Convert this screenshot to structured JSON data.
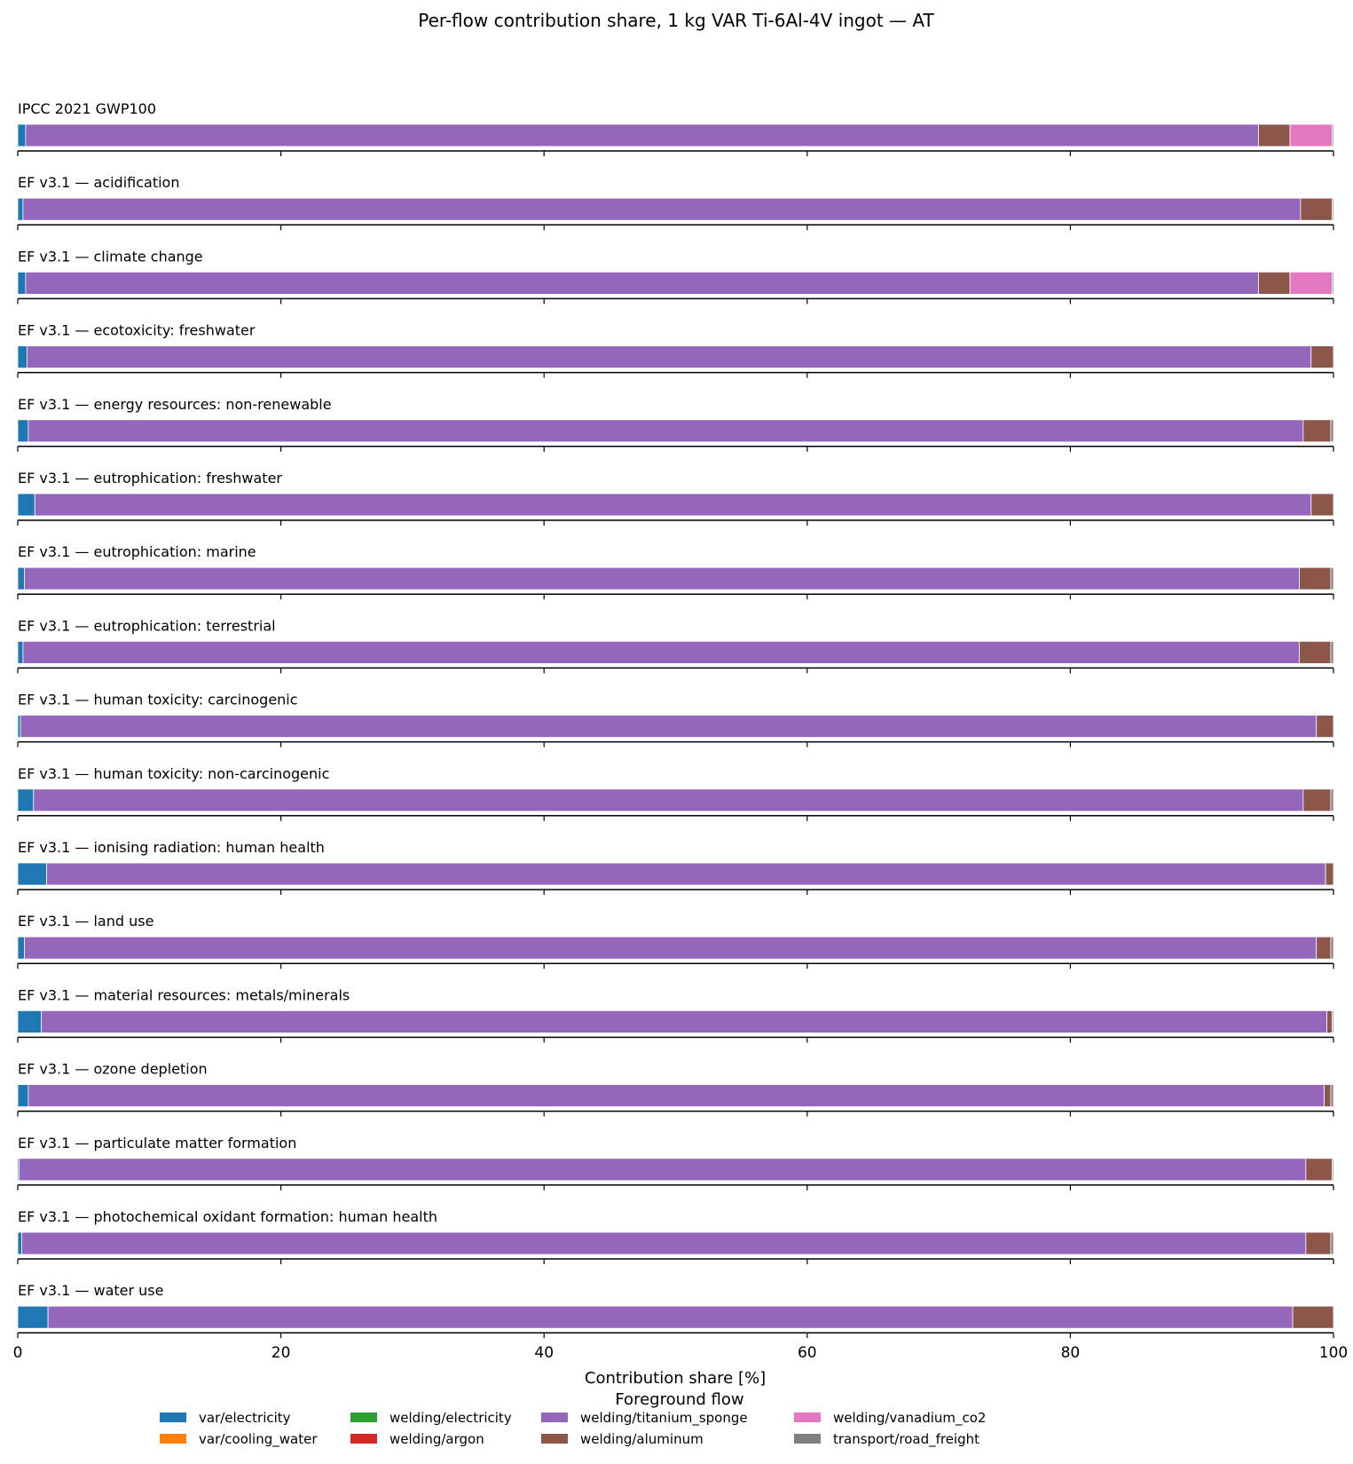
{
  "chart_data": {
    "type": "bar",
    "orientation": "horizontal-stacked-panels",
    "title": "Per-flow contribution share, 1 kg VAR Ti-6Al-4V ingot — AT",
    "xlabel": "Contribution share [%]",
    "xlim": [
      0,
      100
    ],
    "xticks": [
      "0",
      "20",
      "40",
      "60",
      "80",
      "100"
    ],
    "grid": false,
    "legend_title": "Foreground flow",
    "legend_position": "bottom-center",
    "legend_columns": 5,
    "series": [
      {
        "name": "var/electricity",
        "color": "#1f77b4"
      },
      {
        "name": "var/cooling_water",
        "color": "#ff7f0e"
      },
      {
        "name": "welding/electricity",
        "color": "#2ca02c"
      },
      {
        "name": "welding/argon",
        "color": "#d62728"
      },
      {
        "name": "welding/titanium_sponge",
        "color": "#9467bd"
      },
      {
        "name": "welding/aluminum",
        "color": "#8c564b"
      },
      {
        "name": "welding/vanadium_co2",
        "color": "#e377c2"
      },
      {
        "name": "transport/road_freight",
        "color": "#7f7f7f"
      }
    ],
    "categories": [
      "IPCC 2021 GWP100",
      "EF v3.1 — acidification",
      "EF v3.1 — climate change",
      "EF v3.1 — ecotoxicity: freshwater",
      "EF v3.1 — energy resources: non-renewable",
      "EF v3.1 — eutrophication: freshwater",
      "EF v3.1 — eutrophication: marine",
      "EF v3.1 — eutrophication: terrestrial",
      "EF v3.1 — human toxicity: carcinogenic",
      "EF v3.1 — human toxicity: non-carcinogenic",
      "EF v3.1 — ionising radiation: human health",
      "EF v3.1 — land use",
      "EF v3.1 — material resources: metals/minerals",
      "EF v3.1 — ozone depletion",
      "EF v3.1 — particulate matter formation",
      "EF v3.1 — photochemical oxidant formation: human health",
      "EF v3.1 — water use"
    ],
    "values": [
      [
        0.6,
        0.0,
        0.0,
        0.0,
        93.7,
        2.4,
        3.2,
        0.1
      ],
      [
        0.4,
        0.0,
        0.0,
        0.0,
        97.1,
        2.4,
        0.0,
        0.1
      ],
      [
        0.6,
        0.0,
        0.0,
        0.0,
        93.7,
        2.4,
        3.2,
        0.1
      ],
      [
        0.7,
        0.0,
        0.0,
        0.0,
        97.6,
        1.7,
        0.0,
        0.0
      ],
      [
        0.8,
        0.0,
        0.0,
        0.0,
        96.9,
        2.1,
        0.0,
        0.2
      ],
      [
        1.3,
        0.0,
        0.0,
        0.0,
        97.0,
        1.7,
        0.0,
        0.0
      ],
      [
        0.5,
        0.0,
        0.0,
        0.0,
        96.9,
        2.4,
        0.0,
        0.2
      ],
      [
        0.4,
        0.0,
        0.0,
        0.0,
        97.0,
        2.4,
        0.0,
        0.2
      ],
      [
        0.2,
        0.0,
        0.0,
        0.0,
        98.5,
        1.3,
        0.0,
        0.0
      ],
      [
        1.2,
        0.0,
        0.0,
        0.0,
        96.5,
        2.1,
        0.0,
        0.2
      ],
      [
        2.2,
        0.0,
        0.0,
        0.0,
        97.2,
        0.6,
        0.0,
        0.0
      ],
      [
        0.5,
        0.0,
        0.0,
        0.0,
        98.2,
        1.1,
        0.0,
        0.2
      ],
      [
        1.8,
        0.0,
        0.0,
        0.0,
        97.7,
        0.4,
        0.0,
        0.1
      ],
      [
        0.8,
        0.0,
        0.0,
        0.0,
        98.5,
        0.5,
        0.0,
        0.2
      ],
      [
        0.1,
        0.0,
        0.0,
        0.0,
        97.8,
        2.0,
        0.0,
        0.1
      ],
      [
        0.3,
        0.0,
        0.0,
        0.0,
        97.6,
        1.9,
        0.0,
        0.2
      ],
      [
        2.3,
        0.0,
        0.0,
        0.0,
        94.6,
        3.1,
        0.0,
        0.0
      ]
    ]
  }
}
